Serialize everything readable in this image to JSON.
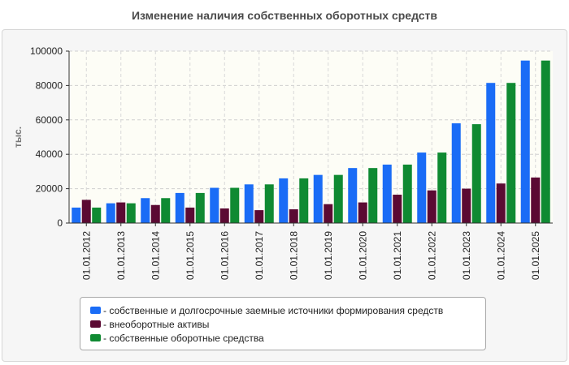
{
  "chart_data": {
    "type": "bar",
    "title": "Изменение наличия собственных оборотных средств",
    "xlabel": "",
    "ylabel": "тыс.",
    "ylim": [
      0,
      100000
    ],
    "yticks": [
      0,
      20000,
      40000,
      60000,
      80000,
      100000
    ],
    "grid": true,
    "legend_position": "bottom",
    "categories": [
      "01.01.2012",
      "01.01.2013",
      "01.01.2014",
      "01.01.2015",
      "01.01.2016",
      "01.01.2017",
      "01.01.2018",
      "01.01.2019",
      "01.01.2020",
      "01.01.2021",
      "01.01.2022",
      "01.01.2023",
      "01.01.2024",
      "01.01.2025"
    ],
    "series": [
      {
        "name": "собственные и долгосрочные заемные источники формирования средств",
        "color": "#1a6cf6",
        "values": [
          9000,
          11500,
          14500,
          17500,
          20500,
          22500,
          26000,
          28000,
          32000,
          34000,
          41000,
          58000,
          81500,
          94500
        ]
      },
      {
        "name": "внеоборотные активы",
        "color": "#5b0a33",
        "values": [
          13500,
          12000,
          10500,
          9000,
          8500,
          7500,
          8000,
          11000,
          12000,
          16500,
          19000,
          20000,
          23000,
          26500
        ]
      },
      {
        "name": "собственные оборотные средства",
        "color": "#0f8a32",
        "values": [
          9000,
          11500,
          14500,
          17500,
          20500,
          22500,
          26000,
          28000,
          32000,
          34000,
          41000,
          57500,
          81500,
          94500
        ]
      }
    ]
  }
}
